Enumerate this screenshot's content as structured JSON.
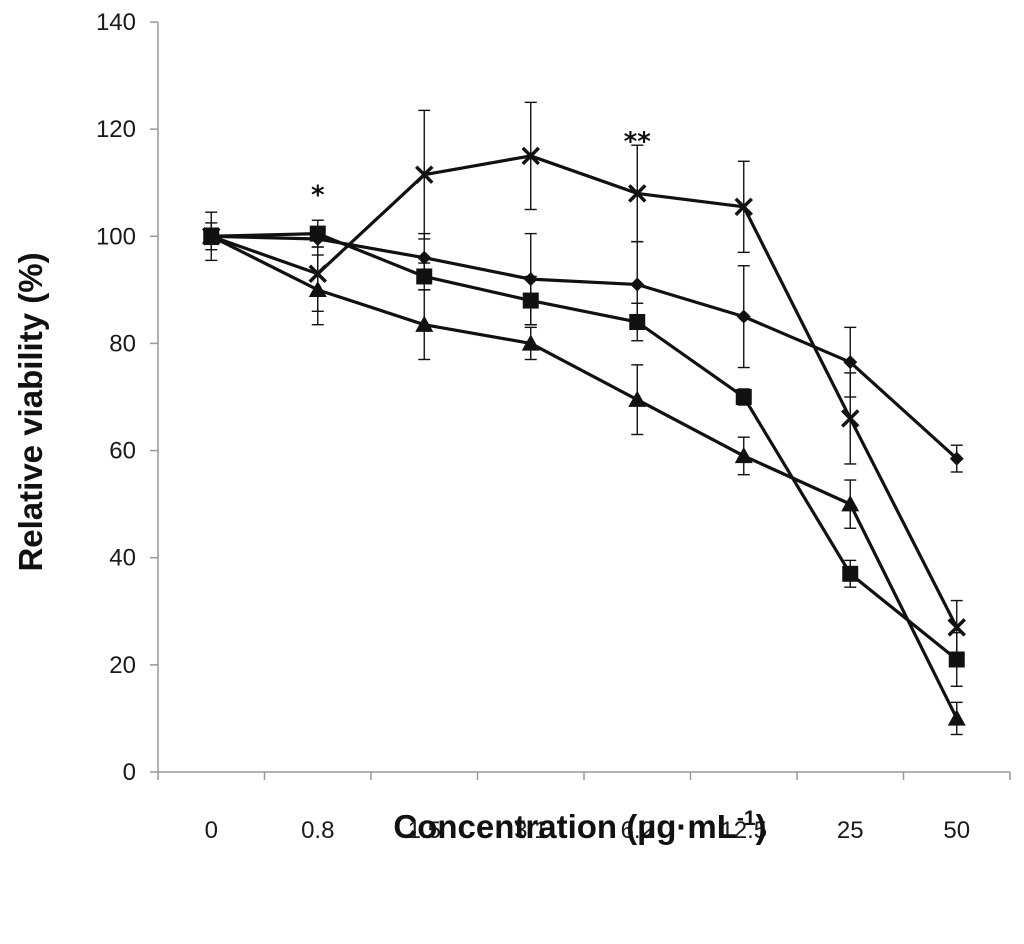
{
  "chart_data": {
    "type": "line",
    "title": "",
    "xlabel": "Concentration (µg·mL",
    "xlabel_superscript": "-1",
    "xlabel_close": ")",
    "ylabel": "Relative viability (%)",
    "categories": [
      "0",
      "0.8",
      "1.5",
      "3.1",
      "6.2",
      "12.5",
      "25",
      "50"
    ],
    "ylim": [
      0,
      140
    ],
    "yticks": [
      0,
      20,
      40,
      60,
      80,
      100,
      120,
      140
    ],
    "grid": false,
    "legend": "none",
    "series": [
      {
        "name": "diamond",
        "marker": "diamond",
        "values": [
          100,
          99.5,
          96,
          92,
          91,
          85,
          76.5,
          58.5
        ],
        "errors": [
          2.5,
          1.5,
          4.5,
          8.5,
          8,
          9.5,
          6.5,
          2.5
        ]
      },
      {
        "name": "square",
        "marker": "square",
        "values": [
          100,
          100.5,
          92.5,
          88,
          84,
          70,
          37,
          21
        ],
        "errors": [
          1.5,
          2.5,
          2.5,
          4.5,
          3.5,
          1.5,
          2.5,
          5
        ]
      },
      {
        "name": "triangle",
        "marker": "triangle",
        "values": [
          100,
          90,
          83.5,
          80,
          69.5,
          59,
          50,
          10
        ],
        "errors": [
          1.5,
          6.5,
          6.5,
          3,
          6.5,
          3.5,
          4.5,
          3
        ]
      },
      {
        "name": "cross",
        "marker": "cross",
        "values": [
          100,
          93,
          111.5,
          115,
          108,
          105.5,
          66,
          27
        ],
        "errors": [
          4.5,
          7,
          12,
          10,
          9,
          8.5,
          8.5,
          5
        ]
      }
    ],
    "annotations": [
      {
        "text": "*",
        "category": "0.8",
        "y": 108
      },
      {
        "text": "**",
        "category": "6.2",
        "y": 118
      }
    ],
    "colors": {
      "line": "#111111",
      "axis": "#999999"
    }
  }
}
